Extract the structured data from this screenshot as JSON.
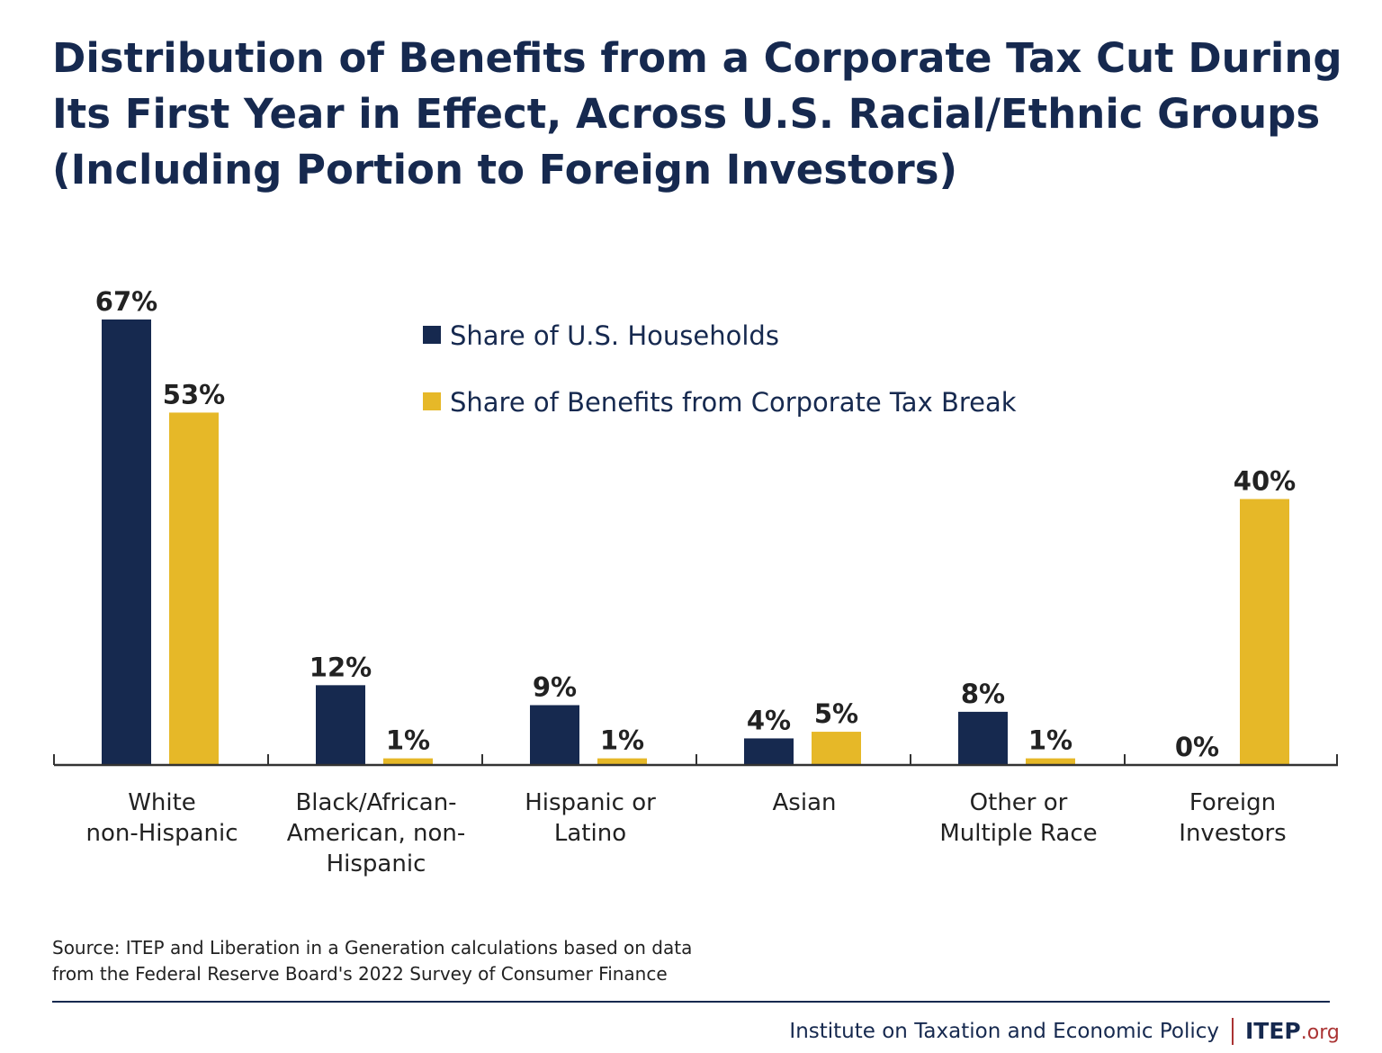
{
  "chart_data": {
    "type": "bar",
    "title_lines": [
      "Distribution of Benefits from a Corporate Tax Cut During",
      "Its First Year in Effect, Across U.S. Racial/Ethnic Groups",
      "(Including Portion to Foreign Investors)"
    ],
    "categories": [
      [
        "White",
        "non-Hispanic"
      ],
      [
        "Black/African-",
        "American, non-",
        "Hispanic"
      ],
      [
        "Hispanic or",
        "Latino"
      ],
      [
        "Asian"
      ],
      [
        "Other or",
        "Multiple Race"
      ],
      [
        "Foreign",
        "Investors"
      ]
    ],
    "series": [
      {
        "name": "Share of U.S. Households",
        "color": "#16294f",
        "values": [
          67,
          12,
          9,
          4,
          8,
          0
        ]
      },
      {
        "name": "Share of Benefits from Corporate Tax Break",
        "color": "#e6b828",
        "values": [
          53,
          1,
          1,
          5,
          1,
          40
        ]
      }
    ],
    "value_suffix": "%",
    "ylim": [
      0,
      67
    ],
    "grid": false,
    "legend": "top-center"
  },
  "source": [
    "Source: ITEP and Liberation in a Generation calculations based on data",
    "from the Federal Reserve Board's 2022 Survey of Consumer Finance"
  ],
  "footer": {
    "org": "Institute on Taxation and Economic Policy",
    "logo_main": "ITEP",
    "logo_suffix": ".org"
  }
}
